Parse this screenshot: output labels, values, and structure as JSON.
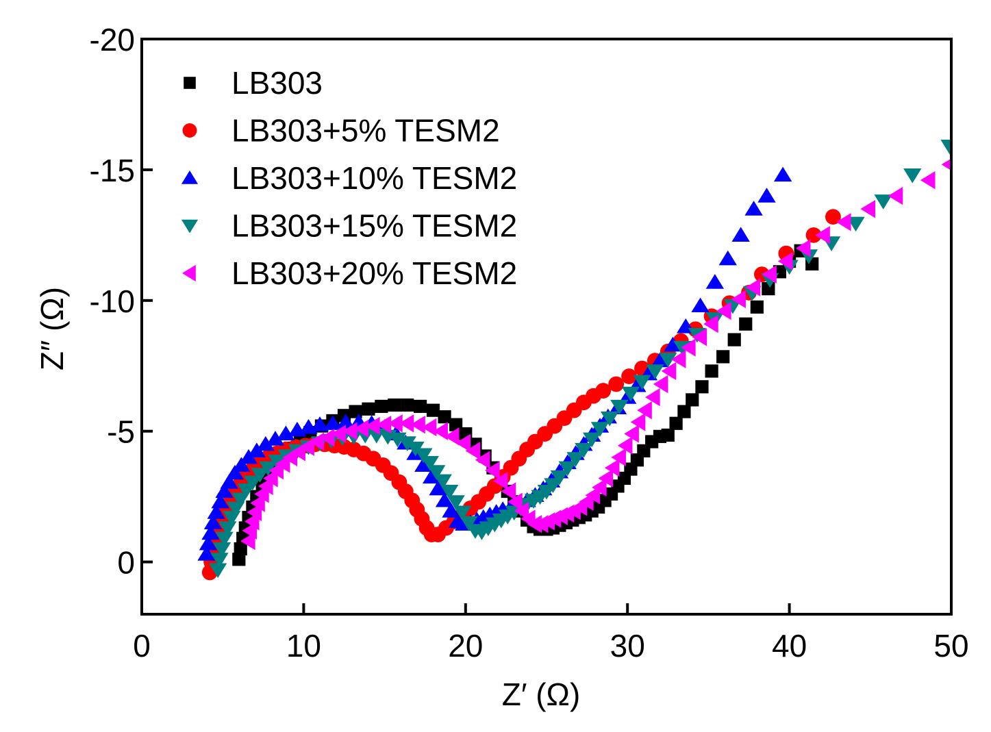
{
  "chart_data": {
    "type": "scatter",
    "title": "",
    "xlabel": "Z′ (Ω)",
    "ylabel": "Z″ (Ω)",
    "xlim": [
      0,
      50
    ],
    "ylim": [
      2,
      -20
    ],
    "y_inverted": true,
    "x_ticks": [
      0,
      10,
      20,
      30,
      40,
      50
    ],
    "x_tick_labels": [
      "0",
      "10",
      "20",
      "30",
      "40",
      "50"
    ],
    "y_ticks": [
      0,
      -5,
      -10,
      -15,
      -20
    ],
    "y_tick_labels": [
      "0",
      "-5",
      "-10",
      "-15",
      "-20"
    ],
    "grid": false,
    "legend_position": "top-left",
    "series": [
      {
        "name": "LB303",
        "marker": "square",
        "color": "#000000",
        "x": [
          6.0,
          6.1,
          6.25,
          6.4,
          6.6,
          6.85,
          7.1,
          7.45,
          7.8,
          8.2,
          8.7,
          9.2,
          9.8,
          10.4,
          11.1,
          11.8,
          12.5,
          13.2,
          14.0,
          14.8,
          15.6,
          16.4,
          17.2,
          18.0,
          18.7,
          19.4,
          20.0,
          20.6,
          21.2,
          21.7,
          22.2,
          22.6,
          23.0,
          23.4,
          23.8,
          24.2,
          24.6,
          25.0,
          25.4,
          25.8,
          26.2,
          26.6,
          27.0,
          27.4,
          27.8,
          28.2,
          28.6,
          29.0,
          29.4,
          29.8,
          30.2,
          30.6,
          31.0,
          31.5,
          32.0,
          32.5,
          33.0,
          33.5,
          34.0,
          34.6,
          35.2,
          35.9,
          36.6,
          37.3,
          38.0,
          38.7,
          39.4,
          40.0,
          40.7,
          41.4
        ],
        "y": [
          -0.1,
          -0.5,
          -0.9,
          -1.3,
          -1.7,
          -2.1,
          -2.5,
          -2.9,
          -3.3,
          -3.7,
          -4.0,
          -4.35,
          -4.65,
          -4.95,
          -5.2,
          -5.4,
          -5.6,
          -5.75,
          -5.85,
          -5.95,
          -6.0,
          -6.0,
          -5.95,
          -5.8,
          -5.55,
          -5.25,
          -4.9,
          -4.5,
          -4.05,
          -3.6,
          -3.15,
          -2.7,
          -2.3,
          -1.95,
          -1.6,
          -1.35,
          -1.25,
          -1.25,
          -1.3,
          -1.4,
          -1.5,
          -1.6,
          -1.7,
          -1.8,
          -1.95,
          -2.1,
          -2.35,
          -2.6,
          -2.9,
          -3.2,
          -3.55,
          -3.9,
          -4.25,
          -4.6,
          -4.8,
          -4.85,
          -5.3,
          -5.75,
          -6.2,
          -6.7,
          -7.3,
          -7.85,
          -8.5,
          -9.1,
          -9.75,
          -10.45,
          -11.1,
          -11.5,
          -11.9,
          -11.4
        ]
      },
      {
        "name": "LB303+5% TESM2",
        "marker": "circle",
        "color": "#ff0000",
        "x": [
          4.2,
          4.3,
          4.45,
          4.6,
          4.8,
          5.0,
          5.25,
          5.5,
          5.8,
          6.1,
          6.45,
          6.85,
          7.3,
          7.8,
          8.35,
          8.9,
          9.5,
          10.1,
          10.7,
          11.3,
          11.9,
          12.5,
          13.1,
          13.7,
          14.3,
          14.9,
          15.4,
          15.9,
          16.3,
          16.7,
          17.0,
          17.3,
          17.6,
          17.9,
          18.3,
          18.8,
          19.3,
          19.8,
          20.3,
          20.8,
          21.3,
          21.8,
          22.3,
          22.8,
          23.3,
          23.8,
          24.3,
          24.9,
          25.5,
          26.1,
          26.7,
          27.3,
          27.9,
          28.5,
          29.3,
          30.1,
          30.9,
          31.7,
          32.5,
          33.3,
          34.2,
          35.2,
          36.3,
          37.5,
          38.3,
          39.8,
          41.5,
          42.7
        ],
        "y": [
          0.4,
          0.0,
          -0.4,
          -0.8,
          -1.2,
          -1.6,
          -2.0,
          -2.35,
          -2.7,
          -3.0,
          -3.3,
          -3.55,
          -3.8,
          -4.0,
          -4.15,
          -4.3,
          -4.4,
          -4.45,
          -4.5,
          -4.5,
          -4.45,
          -4.4,
          -4.3,
          -4.15,
          -3.95,
          -3.7,
          -3.4,
          -3.05,
          -2.7,
          -2.35,
          -2.0,
          -1.65,
          -1.3,
          -1.05,
          -1.05,
          -1.3,
          -1.55,
          -1.8,
          -2.05,
          -2.3,
          -2.6,
          -2.9,
          -3.25,
          -3.6,
          -3.95,
          -4.3,
          -4.6,
          -4.9,
          -5.2,
          -5.5,
          -5.8,
          -6.1,
          -6.35,
          -6.55,
          -6.8,
          -7.1,
          -7.4,
          -7.7,
          -8.05,
          -8.45,
          -8.9,
          -9.4,
          -9.9,
          -10.3,
          -11.0,
          -11.8,
          -12.5,
          -13.2
        ]
      },
      {
        "name": "LB303+10% TESM2",
        "marker": "triangle-up",
        "color": "#0000ff",
        "x": [
          4.0,
          4.1,
          4.25,
          4.4,
          4.6,
          4.85,
          5.1,
          5.4,
          5.75,
          6.15,
          6.6,
          7.1,
          7.65,
          8.25,
          8.9,
          9.6,
          10.3,
          11.0,
          11.8,
          12.6,
          13.4,
          14.2,
          15.0,
          15.7,
          16.3,
          16.9,
          17.4,
          17.9,
          18.3,
          18.7,
          19.1,
          19.5,
          19.9,
          20.3,
          20.7,
          21.1,
          21.5,
          21.9,
          22.3,
          22.8,
          23.3,
          23.8,
          24.3,
          24.8,
          25.3,
          25.8,
          26.3,
          26.8,
          27.3,
          27.8,
          28.3,
          28.8,
          29.4,
          30.0,
          30.6,
          31.3,
          32.0,
          32.8,
          33.6,
          34.5,
          35.4,
          36.2,
          37.0,
          37.8,
          38.6,
          39.6
        ],
        "y": [
          -0.3,
          -0.7,
          -1.1,
          -1.5,
          -1.9,
          -2.3,
          -2.7,
          -3.05,
          -3.4,
          -3.7,
          -4.0,
          -4.25,
          -4.5,
          -4.7,
          -4.9,
          -5.05,
          -5.15,
          -5.25,
          -5.3,
          -5.35,
          -5.35,
          -5.3,
          -5.15,
          -4.9,
          -4.55,
          -4.15,
          -3.7,
          -3.25,
          -2.8,
          -2.35,
          -1.95,
          -1.55,
          -1.45,
          -1.5,
          -1.6,
          -1.7,
          -1.8,
          -1.9,
          -2.0,
          -2.1,
          -2.2,
          -2.35,
          -2.55,
          -2.8,
          -3.1,
          -3.45,
          -3.8,
          -4.15,
          -4.5,
          -4.85,
          -5.2,
          -5.55,
          -5.9,
          -6.3,
          -6.75,
          -7.2,
          -7.7,
          -8.3,
          -9.0,
          -9.8,
          -10.7,
          -11.6,
          -12.5,
          -13.5,
          -14.0,
          -14.8
        ]
      },
      {
        "name": "LB303+15% TESM2",
        "marker": "triangle-down",
        "color": "#008080",
        "x": [
          4.7,
          4.8,
          4.95,
          5.1,
          5.3,
          5.55,
          5.8,
          6.1,
          6.45,
          6.85,
          7.3,
          7.8,
          8.35,
          8.95,
          9.6,
          10.3,
          11.0,
          11.7,
          12.4,
          13.1,
          13.8,
          14.5,
          15.2,
          15.8,
          16.4,
          16.9,
          17.4,
          17.8,
          18.2,
          18.6,
          19.0,
          19.4,
          19.8,
          20.2,
          20.6,
          21.0,
          21.4,
          21.8,
          22.2,
          22.6,
          23.0,
          23.4,
          23.8,
          24.2,
          24.6,
          25.0,
          25.4,
          25.8,
          26.3,
          26.8,
          27.3,
          27.8,
          28.3,
          28.9,
          29.5,
          30.2,
          30.9,
          31.7,
          32.5,
          33.4,
          34.3,
          35.4,
          36.5,
          37.7,
          38.8,
          40.0,
          41.2,
          42.6,
          44.1,
          45.8,
          47.6,
          49.9
        ],
        "y": [
          0.3,
          -0.1,
          -0.5,
          -0.9,
          -1.3,
          -1.7,
          -2.05,
          -2.4,
          -2.75,
          -3.05,
          -3.35,
          -3.6,
          -3.85,
          -4.05,
          -4.25,
          -4.4,
          -4.55,
          -4.65,
          -4.75,
          -4.8,
          -4.85,
          -4.85,
          -4.8,
          -4.7,
          -4.55,
          -4.35,
          -4.1,
          -3.8,
          -3.45,
          -3.1,
          -2.7,
          -2.3,
          -1.9,
          -1.5,
          -1.2,
          -1.15,
          -1.3,
          -1.45,
          -1.6,
          -1.75,
          -1.9,
          -2.05,
          -2.2,
          -2.35,
          -2.5,
          -2.7,
          -2.95,
          -3.25,
          -3.6,
          -3.95,
          -4.3,
          -4.7,
          -5.1,
          -5.5,
          -5.95,
          -6.45,
          -6.9,
          -7.3,
          -7.75,
          -8.2,
          -8.7,
          -9.3,
          -9.8,
          -10.3,
          -10.8,
          -11.3,
          -11.7,
          -12.2,
          -12.95,
          -13.8,
          -14.8,
          -15.9
        ]
      },
      {
        "name": "LB303+20% TESM2",
        "marker": "triangle-left",
        "color": "#ff00ff",
        "x": [
          6.6,
          6.7,
          6.85,
          7.0,
          7.2,
          7.45,
          7.7,
          8.0,
          8.35,
          8.75,
          9.2,
          9.7,
          10.25,
          10.85,
          11.5,
          12.2,
          12.9,
          13.6,
          14.3,
          15.0,
          15.7,
          16.4,
          17.1,
          17.8,
          18.5,
          19.2,
          19.9,
          20.5,
          21.1,
          21.7,
          22.2,
          22.7,
          23.1,
          23.5,
          23.9,
          24.3,
          24.7,
          25.1,
          25.5,
          25.9,
          26.3,
          26.7,
          27.1,
          27.5,
          27.9,
          28.3,
          28.7,
          29.1,
          29.5,
          29.9,
          30.3,
          30.7,
          31.1,
          31.6,
          32.1,
          32.6,
          33.2,
          33.8,
          34.5,
          35.2,
          36.0,
          36.9,
          37.8,
          38.8,
          39.8,
          40.9,
          42.1,
          43.4,
          44.9,
          46.6,
          48.6,
          49.9
        ],
        "y": [
          -0.8,
          -1.2,
          -1.55,
          -1.9,
          -2.25,
          -2.6,
          -2.9,
          -3.2,
          -3.5,
          -3.75,
          -4.0,
          -4.2,
          -4.4,
          -4.6,
          -4.75,
          -4.9,
          -5.0,
          -5.1,
          -5.2,
          -5.25,
          -5.3,
          -5.3,
          -5.25,
          -5.15,
          -5.0,
          -4.8,
          -4.55,
          -4.25,
          -3.9,
          -3.5,
          -3.1,
          -2.7,
          -2.3,
          -1.95,
          -1.65,
          -1.45,
          -1.45,
          -1.55,
          -1.65,
          -1.75,
          -1.85,
          -1.95,
          -2.1,
          -2.3,
          -2.55,
          -2.85,
          -3.2,
          -3.6,
          -4.0,
          -4.45,
          -4.9,
          -5.35,
          -5.8,
          -6.3,
          -6.8,
          -7.3,
          -7.75,
          -8.2,
          -8.6,
          -9.1,
          -9.6,
          -10.05,
          -10.5,
          -11.0,
          -11.5,
          -12.0,
          -12.5,
          -13.0,
          -13.5,
          -14.0,
          -14.6,
          -15.2
        ]
      }
    ]
  }
}
